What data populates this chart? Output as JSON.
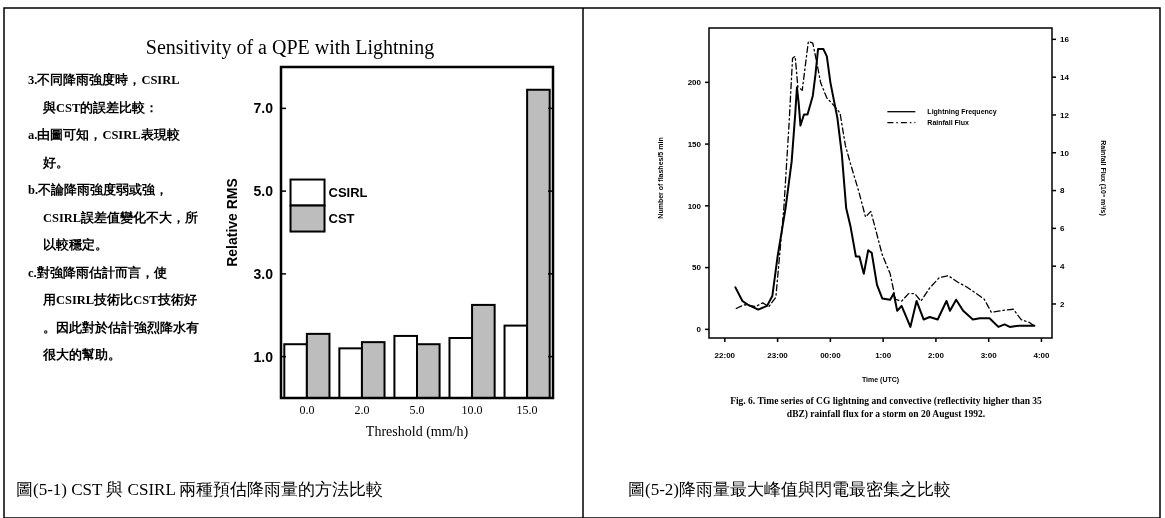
{
  "chart_data": [
    {
      "type": "bar",
      "title": "Sensitivity of a QPE with Lightning",
      "xlabel": "Threshold (mm/h)",
      "ylabel": "Relative RMS",
      "categories": [
        "0.0",
        "2.0",
        "5.0",
        "10.0",
        "15.0"
      ],
      "series": [
        {
          "name": "CSIRL",
          "color": "#ffffff",
          "values": [
            1.3,
            1.2,
            1.5,
            1.45,
            1.75
          ]
        },
        {
          "name": "CST",
          "color": "#bdbdbd",
          "values": [
            1.55,
            1.35,
            1.3,
            2.25,
            7.45
          ]
        }
      ],
      "ylim": [
        0,
        8
      ],
      "yticks": [
        {
          "value": 1,
          "label": "1.0"
        },
        {
          "value": 3,
          "label": "3.0"
        },
        {
          "value": 5,
          "label": "5.0"
        },
        {
          "value": 7,
          "label": "7.0"
        }
      ],
      "legend": "left",
      "grid": false,
      "annotations": [
        "3.不同降雨強度時，CSIRL與CST的誤差比較：",
        "a.由圖可知，CSIRL表現較好。",
        "b.不論降雨強度弱或強，CSIRL誤差值變化不大，所以較穩定。",
        "c.對強降雨估計而言，使用CSIRL技術比CST技術好。因此對於估計強烈降水有很大的幫助。",
        "圖(5-1) CST 與 CSIRL 兩種預估降雨量的方法比較"
      ]
    },
    {
      "type": "line",
      "xlabel": "Time (UTC)",
      "ylabel": "Number of flashes/5 min",
      "y2label": "Rainfall Flux (10⁶ m³/s)",
      "series": [
        {
          "name": "Lightning Frequency",
          "color": "#000000",
          "line_style": "solid",
          "x": [
            "1992-08-20T22:12",
            "1992-08-20T22:20",
            "1992-08-20T22:26",
            "1992-08-20T22:38",
            "1992-08-20T22:48",
            "1992-08-20T22:54",
            "1992-08-20T23:00",
            "1992-08-20T23:09",
            "1992-08-20T23:16",
            "1992-08-20T23:20",
            "1992-08-20T23:22",
            "1992-08-20T23:24",
            "1992-08-20T23:26",
            "1992-08-20T23:30",
            "1992-08-20T23:34",
            "1992-08-20T23:40",
            "1992-08-20T23:43",
            "1992-08-20T23:46",
            "1992-08-20T23:52",
            "1992-08-20T23:56",
            "1992-08-21T00:00",
            "1992-08-21T00:08",
            "1992-08-21T00:13",
            "1992-08-21T00:18",
            "1992-08-21T00:23",
            "1992-08-21T00:29",
            "1992-08-21T00:33",
            "1992-08-21T00:38",
            "1992-08-21T00:43",
            "1992-08-21T00:47",
            "1992-08-21T00:53",
            "1992-08-21T00:59",
            "1992-08-21T01:08",
            "1992-08-21T01:12",
            "1992-08-21T01:16",
            "1992-08-21T01:21",
            "1992-08-21T01:31",
            "1992-08-21T01:38",
            "1992-08-21T01:46",
            "1992-08-21T01:53",
            "1992-08-21T02:02",
            "1992-08-21T02:12",
            "1992-08-21T02:16",
            "1992-08-21T02:23",
            "1992-08-21T02:31",
            "1992-08-21T02:42",
            "1992-08-21T02:50",
            "1992-08-21T03:01",
            "1992-08-21T03:11",
            "1992-08-21T03:18",
            "1992-08-21T03:24",
            "1992-08-21T03:35",
            "1992-08-21T03:52"
          ],
          "values": [
            34,
            23,
            20,
            16,
            19,
            27,
            59,
            98,
            136,
            174,
            196,
            183,
            165,
            174,
            174,
            189,
            206,
            227,
            227,
            221,
            200,
            171,
            142,
            98,
            83,
            59,
            59,
            45,
            64,
            62,
            36,
            25,
            24,
            29,
            15,
            19,
            2,
            23,
            8,
            10,
            8,
            23,
            15,
            24,
            15,
            8,
            9,
            9,
            2,
            4,
            2,
            3,
            3
          ]
        },
        {
          "name": "Rainfall Flux",
          "color": "#000000",
          "line_style": "dashdot",
          "axis": "y2",
          "x": [
            "1992-08-20T22:13",
            "1992-08-20T22:22",
            "1992-08-20T22:35",
            "1992-08-20T22:43",
            "1992-08-20T22:50",
            "1992-08-20T22:58",
            "1992-08-20T23:07",
            "1992-08-20T23:13",
            "1992-08-20T23:17",
            "1992-08-20T23:20",
            "1992-08-20T23:23",
            "1992-08-20T23:28",
            "1992-08-20T23:35",
            "1992-08-20T23:40",
            "1992-08-20T23:44",
            "1992-08-20T23:49",
            "1992-08-20T23:56",
            "1992-08-21T00:04",
            "1992-08-21T00:11",
            "1992-08-21T00:17",
            "1992-08-21T00:23",
            "1992-08-21T00:32",
            "1992-08-21T00:40",
            "1992-08-21T00:46",
            "1992-08-21T00:50",
            "1992-08-21T00:59",
            "1992-08-21T01:08",
            "1992-08-21T01:14",
            "1992-08-21T01:21",
            "1992-08-21T01:29",
            "1992-08-21T01:36",
            "1992-08-21T01:43",
            "1992-08-21T01:53",
            "1992-08-21T02:04",
            "1992-08-21T02:14",
            "1992-08-21T02:25",
            "1992-08-21T02:35",
            "1992-08-21T02:46",
            "1992-08-21T02:55",
            "1992-08-21T03:03",
            "1992-08-21T03:16",
            "1992-08-21T03:28",
            "1992-08-21T03:37",
            "1992-08-21T03:46",
            "1992-08-21T03:52"
          ],
          "values": [
            1.76,
            1.96,
            1.86,
            2.06,
            1.86,
            2.35,
            7.0,
            11.5,
            15.0,
            15.1,
            13.5,
            13.3,
            15.9,
            15.8,
            14.9,
            13.7,
            12.9,
            12.5,
            12.1,
            10.4,
            9.4,
            8.0,
            6.6,
            6.9,
            6.2,
            4.6,
            3.6,
            2.25,
            2.15,
            2.55,
            2.55,
            2.15,
            2.85,
            3.4,
            3.5,
            3.15,
            2.9,
            2.55,
            2.25,
            1.56,
            1.66,
            1.72,
            1.17,
            1.03,
            0.83
          ]
        }
      ],
      "xlim": [
        "1992-08-20T21:42",
        "1992-08-21T04:12"
      ],
      "xticks": [
        {
          "value": "1992-08-20T22:00",
          "label": "22:00"
        },
        {
          "value": "1992-08-20T23:00",
          "label": "23:00"
        },
        {
          "value": "1992-08-21T00:00",
          "label": "00:00"
        },
        {
          "value": "1992-08-21T01:00",
          "label": "1:00"
        },
        {
          "value": "1992-08-21T02:00",
          "label": "2:00"
        },
        {
          "value": "1992-08-21T03:00",
          "label": "3:00"
        },
        {
          "value": "1992-08-21T04:00",
          "label": "4:00"
        }
      ],
      "ylim": [
        -7,
        244
      ],
      "yticks": [
        0,
        50,
        100,
        150,
        200
      ],
      "y2lim": [
        0.2,
        16.6
      ],
      "y2ticks": [
        2,
        4,
        6,
        8,
        10,
        12,
        14,
        16
      ],
      "legend": "top right",
      "grid": false,
      "annotations": [
        "Fig. 6. Time series of CG lightning and convective (reflectivity higher than 35 dBZ) rainfall flux for a storm on 20 August 1992.",
        "圖(5-2)降雨量最大峰值與閃電最密集之比較"
      ]
    }
  ]
}
